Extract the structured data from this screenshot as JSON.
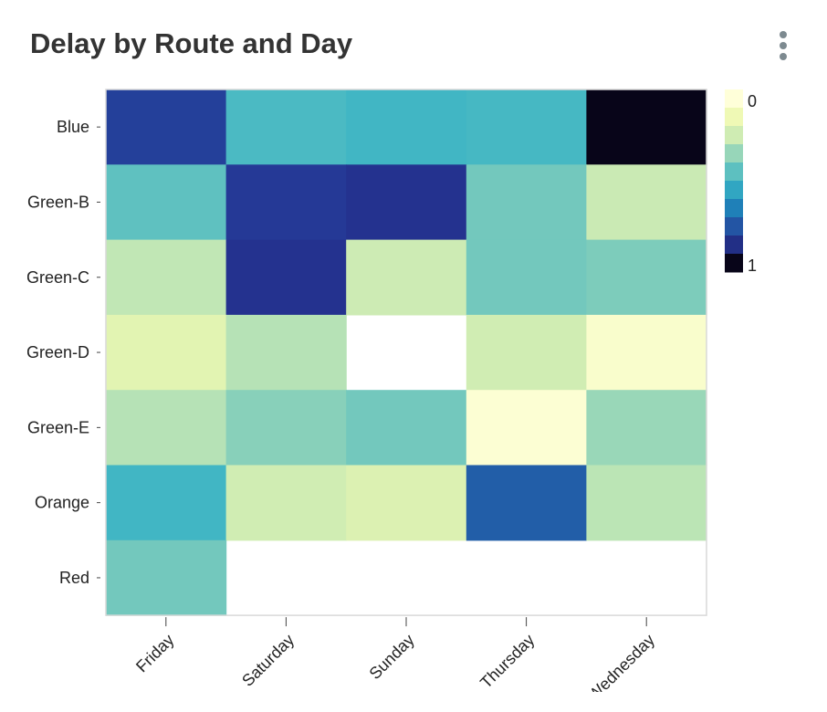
{
  "header": {
    "title": "Delay by Route and Day"
  },
  "menu": {
    "icon": "kebab-menu-icon"
  },
  "chart_data": {
    "type": "heatmap",
    "title": "Delay by Route and Day",
    "x_categories": [
      "Friday",
      "Saturday",
      "Sunday",
      "Thursday",
      "Wednesday"
    ],
    "y_categories": [
      "Blue",
      "Green-B",
      "Green-C",
      "Green-D",
      "Green-E",
      "Orange",
      "Red"
    ],
    "values": [
      [
        0.84,
        0.48,
        0.5,
        0.49,
        1.0
      ],
      [
        0.44,
        0.86,
        0.88,
        0.4,
        0.24
      ],
      [
        0.26,
        0.88,
        0.23,
        0.4,
        0.38
      ],
      [
        0.16,
        0.28,
        null,
        0.22,
        0.04
      ],
      [
        0.28,
        0.36,
        0.4,
        0.02,
        0.33
      ],
      [
        0.5,
        0.22,
        0.18,
        0.75,
        0.27
      ],
      [
        0.4,
        null,
        null,
        null,
        null
      ]
    ],
    "value_range": [
      0,
      1
    ],
    "colorscale": "YlGnBu",
    "colorbar": {
      "tick_labels": [
        "0",
        "1"
      ],
      "placement": "right"
    },
    "grid": false
  }
}
